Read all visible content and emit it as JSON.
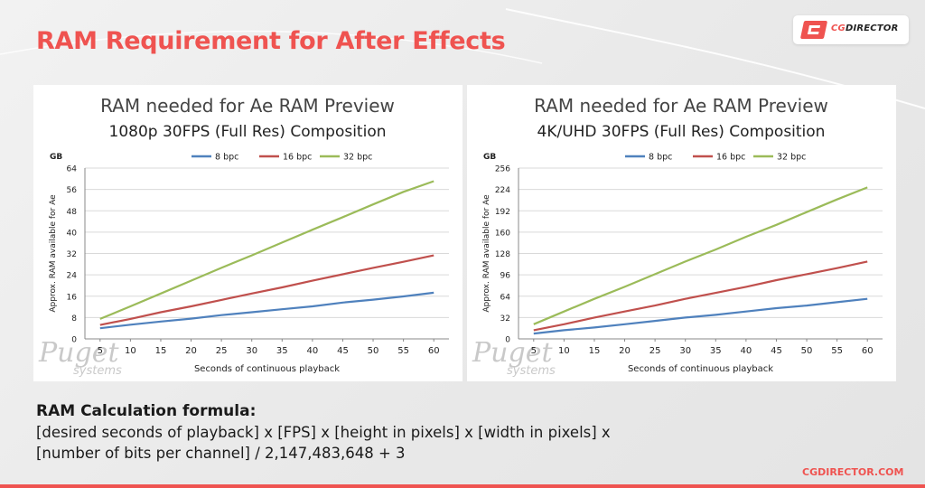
{
  "slide_title": "RAM Requirement for After Effects",
  "brand": {
    "logo_text": "CGDIRECTOR",
    "logo_text_accent": "CG",
    "logo_text_rest": "DIRECTOR",
    "site": "CGDIRECTOR.COM"
  },
  "colors": {
    "accent": "#ef5350",
    "series_8bpc": "#4f81bd",
    "series_16bpc": "#c0504d",
    "series_32bpc": "#9bbb59"
  },
  "formula": {
    "title": "RAM Calculation formula:",
    "line1": "[desired seconds of playback] x [FPS] x [height in pixels] x [width in pixels] x",
    "line2": "[number of bits per channel] / 2,147,483,648 + 3"
  },
  "watermark": {
    "text1": "Puget",
    "text2": "systems"
  },
  "chart_data": [
    {
      "type": "line",
      "title": "RAM needed for Ae RAM Preview",
      "subtitle": "1080p 30FPS (Full Res) Composition",
      "xlabel": "Seconds of continuous playback",
      "ylabel": "Approx. RAM available for Ae",
      "yunit": "GB",
      "x": [
        5,
        10,
        15,
        20,
        25,
        30,
        35,
        40,
        45,
        50,
        55,
        60
      ],
      "xlim": [
        5,
        60
      ],
      "ylim": [
        0,
        64
      ],
      "yticks": [
        0,
        8,
        16,
        24,
        32,
        40,
        48,
        56,
        64
      ],
      "grid": true,
      "legend": "top-center",
      "series": [
        {
          "name": "8 bpc",
          "values": [
            4.0,
            5.3,
            6.5,
            7.6,
            8.9,
            10.0,
            11.1,
            12.2,
            13.6,
            14.7,
            15.9,
            17.3
          ]
        },
        {
          "name": "16 bpc",
          "values": [
            5.2,
            7.5,
            10.0,
            12.2,
            14.6,
            17.0,
            19.3,
            21.8,
            24.2,
            26.6,
            28.9,
            31.3
          ]
        },
        {
          "name": "32 bpc",
          "values": [
            7.5,
            12.2,
            17.0,
            21.8,
            26.6,
            31.3,
            36.1,
            40.9,
            45.6,
            50.4,
            55.1,
            59.1
          ]
        }
      ]
    },
    {
      "type": "line",
      "title": "RAM needed for Ae RAM Preview",
      "subtitle": "4K/UHD 30FPS (Full Res) Composition",
      "xlabel": "Seconds of continuous playback",
      "ylabel": "Approx. RAM available for Ae",
      "yunit": "GB",
      "x": [
        5,
        10,
        15,
        20,
        25,
        30,
        35,
        40,
        45,
        50,
        55,
        60
      ],
      "xlim": [
        5,
        60
      ],
      "ylim": [
        0,
        256
      ],
      "yticks": [
        0,
        32,
        64,
        96,
        128,
        160,
        192,
        224,
        256
      ],
      "grid": true,
      "legend": "top-center",
      "series": [
        {
          "name": "8 bpc",
          "values": [
            8,
            13,
            17,
            22,
            27,
            32,
            36,
            41,
            46,
            50,
            55,
            60
          ]
        },
        {
          "name": "16 bpc",
          "values": [
            13,
            22,
            32,
            41,
            50,
            60,
            69,
            78,
            88,
            97,
            106,
            116
          ]
        },
        {
          "name": "32 bpc",
          "values": [
            22,
            41,
            60,
            78,
            97,
            116,
            134,
            153,
            171,
            190,
            209,
            227
          ]
        }
      ]
    }
  ]
}
